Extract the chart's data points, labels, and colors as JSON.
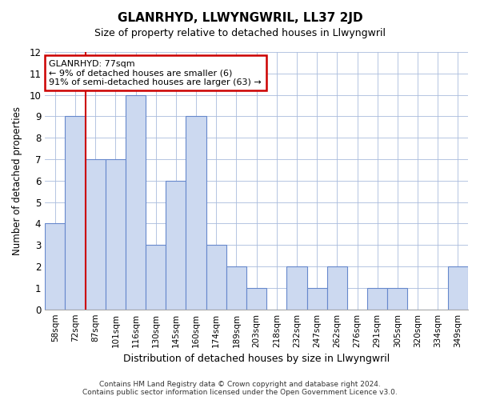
{
  "title": "GLANRHYD, LLWYNGWRIL, LL37 2JD",
  "subtitle": "Size of property relative to detached houses in Llwyngwril",
  "xlabel": "Distribution of detached houses by size in Llwyngwril",
  "ylabel": "Number of detached properties",
  "categories": [
    "58sqm",
    "72sqm",
    "87sqm",
    "101sqm",
    "116sqm",
    "130sqm",
    "145sqm",
    "160sqm",
    "174sqm",
    "189sqm",
    "203sqm",
    "218sqm",
    "232sqm",
    "247sqm",
    "262sqm",
    "276sqm",
    "291sqm",
    "305sqm",
    "320sqm",
    "334sqm",
    "349sqm"
  ],
  "values": [
    4,
    9,
    7,
    7,
    10,
    3,
    6,
    9,
    3,
    2,
    1,
    0,
    2,
    1,
    2,
    0,
    1,
    1,
    0,
    0,
    2
  ],
  "bar_color": "#ccd9f0",
  "bar_edge_color": "#6688cc",
  "ylim": [
    0,
    12
  ],
  "yticks": [
    0,
    1,
    2,
    3,
    4,
    5,
    6,
    7,
    8,
    9,
    10,
    11,
    12
  ],
  "annotation_text": "GLANRHYD: 77sqm\n← 9% of detached houses are smaller (6)\n91% of semi-detached houses are larger (63) →",
  "annotation_box_color": "#ffffff",
  "annotation_box_edge": "#cc0000",
  "footer": "Contains HM Land Registry data © Crown copyright and database right 2024.\nContains public sector information licensed under the Open Government Licence v3.0.",
  "vline_color": "#cc0000",
  "vline_x": 1.5,
  "background_color": "#ffffff",
  "plot_bg_color": "#ffffff",
  "grid_color": "#aabbdd"
}
